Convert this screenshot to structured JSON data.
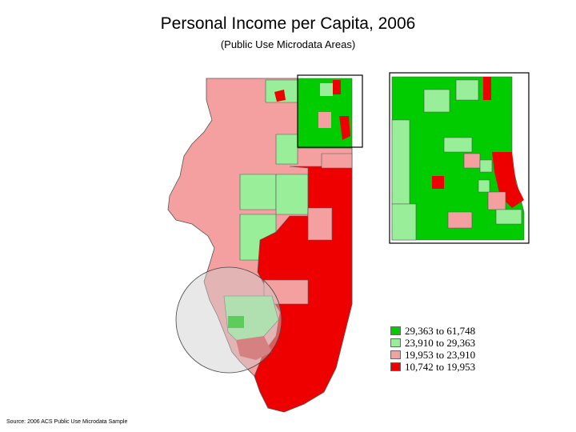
{
  "title": "Personal Income per Capita, 2006",
  "subtitle": "(Public Use Microdata Areas)",
  "source": "Source: 2006 ACS Public Use Microdata Sample",
  "legend": [
    {
      "label": "29,363 to 61,748",
      "color": "#00cc00"
    },
    {
      "label": "23,910 to 29,363",
      "color": "#99ee99"
    },
    {
      "label": "19,953 to 23,910",
      "color": "#f4a0a0"
    },
    {
      "label": "10,742 to 19,953",
      "color": "#ee0000"
    }
  ]
}
